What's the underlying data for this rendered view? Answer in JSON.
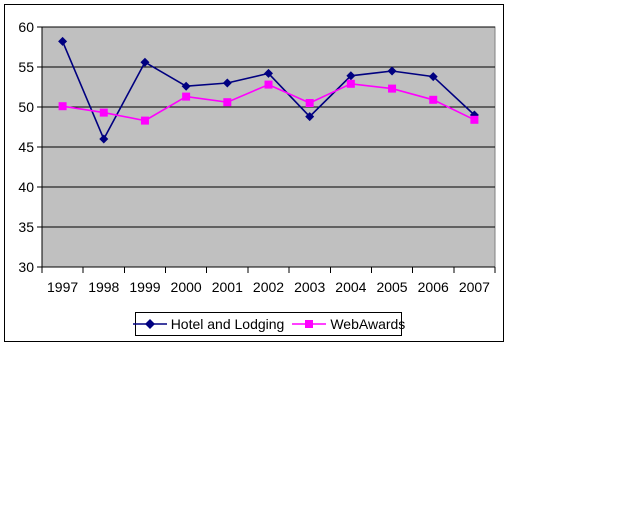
{
  "chart_data": {
    "type": "line",
    "title": "",
    "xlabel": "",
    "ylabel": "",
    "categories": [
      "1997",
      "1998",
      "1999",
      "2000",
      "2001",
      "2002",
      "2003",
      "2004",
      "2005",
      "2006",
      "2007"
    ],
    "series": [
      {
        "name": "Hotel and Lodging",
        "color": "#000080",
        "marker": "diamond",
        "values": [
          58.2,
          46.0,
          55.6,
          52.6,
          53.0,
          54.2,
          48.8,
          53.9,
          54.5,
          53.8,
          49.0
        ]
      },
      {
        "name": "WebAwards",
        "color": "#FF00FF",
        "marker": "square",
        "values": [
          50.1,
          49.3,
          48.3,
          51.3,
          50.6,
          52.8,
          50.5,
          52.9,
          52.3,
          50.9,
          48.4
        ]
      }
    ],
    "ylim": [
      30,
      60
    ],
    "yticks": [
      60,
      55,
      50,
      45,
      40,
      35,
      30
    ],
    "grid": true,
    "gridline_color": "#000000",
    "plot_bg": "#C0C0C0",
    "plot_border_color": "#808080",
    "legend_position": "bottom"
  }
}
